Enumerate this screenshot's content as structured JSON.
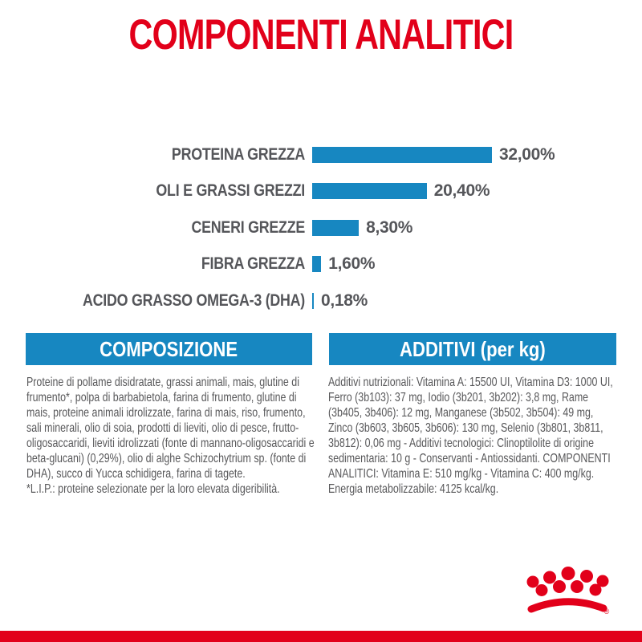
{
  "title": "COMPONENTI ANALITICI",
  "chart_data": {
    "type": "bar",
    "orientation": "horizontal",
    "title": "COMPONENTI ANALITICI",
    "xlabel": "",
    "ylabel": "",
    "unit": "%",
    "xlim": [
      0,
      32
    ],
    "grid": false,
    "legend": false,
    "categories": [
      "PROTEINA GREZZA",
      "OLI E GRASSI GREZZI",
      "CENERI GREZZE",
      "FIBRA GREZZA",
      "ACIDO GRASSO OMEGA-3 (DHA)"
    ],
    "values": [
      32.0,
      20.4,
      8.3,
      1.6,
      0.18
    ],
    "value_labels": [
      "32,00%",
      "20,40%",
      "8,30%",
      "1,60%",
      "0,18%"
    ],
    "bar_color": "#1787c1"
  },
  "composition": {
    "header": "COMPOSIZIONE",
    "body": "Proteine di pollame disidratate, grassi animali, mais, glutine di frumento*, polpa di barbabietola, farina di frumento, glutine di mais, proteine animali idrolizzate, farina di mais, riso, frumento, sali minerali, olio di soia, prodotti di lieviti, olio di pesce, frutto-oligosaccaridi, lieviti idrolizzati (fonte di mannano-oligosaccaridi e beta-glucani) (0,29%), olio di alghe Schizochytrium sp. (fonte di DHA), succo di Yucca schidigera, farina di tagete.",
    "footnote": "*L.I.P.: proteine selezionate per la loro elevata digeribilità."
  },
  "additives": {
    "header": "ADDITIVI (per kg)",
    "body": "Additivi nutrizionali: Vitamina A: 15500 UI, Vitamina D3: 1000 UI, Ferro (3b103): 37 mg, Iodio (3b201, 3b202): 3,8 mg, Rame (3b405, 3b406): 12 mg, Manganese (3b502, 3b504): 49 mg, Zinco (3b603, 3b605, 3b606): 130 mg, Selenio (3b801, 3b811, 3b812): 0,06 mg - Additivi tecnologici: Clinoptilolite di origine sedimentaria: 10 g - Conservanti - Antiossidanti. COMPONENTI ANALITICI: Vitamina E: 510 mg/kg - Vitamina C: 400 mg/kg. Energia metabolizzabile: 4125 kcal/kg."
  },
  "logo": {
    "name": "royal-canin-crown",
    "registered_mark": "®"
  },
  "colors": {
    "brand_red": "#e2001a",
    "brand_blue": "#1787c1",
    "text_gray": "#58585a",
    "label_gray": "#55565a",
    "background": "#ffffff"
  }
}
